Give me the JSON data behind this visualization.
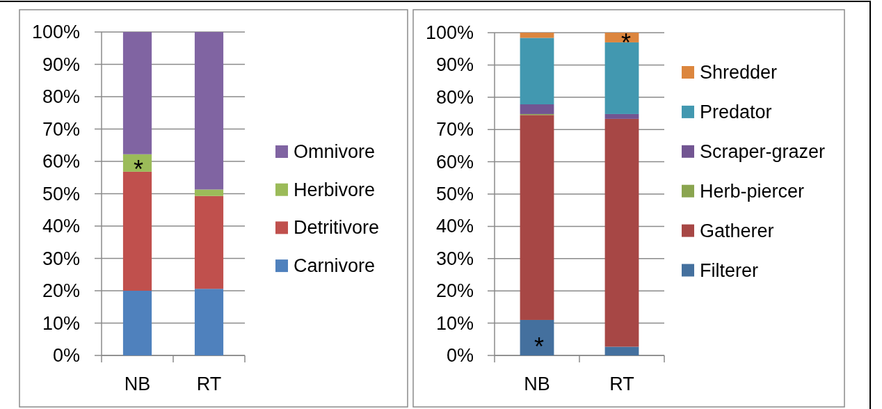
{
  "chart_data": [
    {
      "type": "bar",
      "stacked": true,
      "categories": [
        "NB",
        "RT"
      ],
      "series": [
        {
          "name": "Carnivore",
          "color": "#4f81bd",
          "values": [
            20,
            20.6
          ]
        },
        {
          "name": "Detritivore",
          "color": "#c0504d",
          "values": [
            36.8,
            28.7
          ]
        },
        {
          "name": "Herbivore",
          "color": "#9bbb59",
          "values": [
            5.4,
            2.0
          ]
        },
        {
          "name": "Omnivore",
          "color": "#8064a2",
          "values": [
            37.8,
            48.7
          ]
        }
      ],
      "ylim": [
        0,
        100
      ],
      "yticks": [
        {
          "value": 0,
          "label": "0%"
        },
        {
          "value": 10,
          "label": "10%"
        },
        {
          "value": 20,
          "label": "20%"
        },
        {
          "value": 30,
          "label": "30%"
        },
        {
          "value": 40,
          "label": "40%"
        },
        {
          "value": 50,
          "label": "50%"
        },
        {
          "value": 60,
          "label": "60%"
        },
        {
          "value": 70,
          "label": "70%"
        },
        {
          "value": 80,
          "label": "80%"
        },
        {
          "value": 90,
          "label": "90%"
        },
        {
          "value": 100,
          "label": "100%"
        }
      ],
      "grid": "y",
      "legend": "right",
      "annotations": [
        "*"
      ]
    },
    {
      "type": "bar",
      "stacked": true,
      "categories": [
        "NB",
        "RT"
      ],
      "series": [
        {
          "name": "Filterer",
          "color": "#44709e",
          "values": [
            11.0,
            2.7
          ]
        },
        {
          "name": "Gatherer",
          "color": "#a74745",
          "values": [
            63.5,
            70.6
          ]
        },
        {
          "name": "Herb-piercer",
          "color": "#8aa54f",
          "values": [
            0.3,
            0
          ]
        },
        {
          "name": "Scraper-grazer",
          "color": "#725592",
          "values": [
            3.0,
            1.5
          ]
        },
        {
          "name": "Predator",
          "color": "#4298b0",
          "values": [
            20.6,
            22.2
          ]
        },
        {
          "name": "Shredder",
          "color": "#dc863e",
          "values": [
            1.6,
            3.0
          ]
        }
      ],
      "ylim": [
        0,
        100
      ],
      "yticks": [
        {
          "value": 0,
          "label": "0%"
        },
        {
          "value": 10,
          "label": "10%"
        },
        {
          "value": 20,
          "label": "20%"
        },
        {
          "value": 30,
          "label": "30%"
        },
        {
          "value": 40,
          "label": "40%"
        },
        {
          "value": 50,
          "label": "50%"
        },
        {
          "value": 60,
          "label": "60%"
        },
        {
          "value": 70,
          "label": "70%"
        },
        {
          "value": 80,
          "label": "80%"
        },
        {
          "value": 90,
          "label": "90%"
        },
        {
          "value": 100,
          "label": "100%"
        }
      ],
      "grid": "y",
      "legend": "right",
      "annotations": [
        "*",
        "*"
      ]
    }
  ]
}
